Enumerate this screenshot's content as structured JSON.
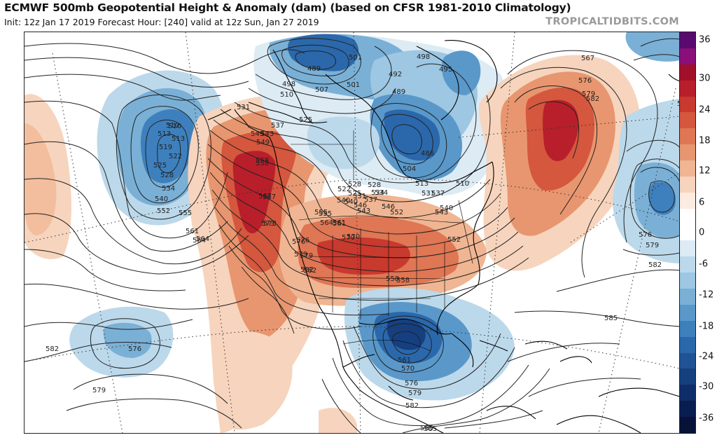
{
  "header": {
    "title": "ECMWF 500mb Geopotential Height & Anomaly (dam) (based on CFSR 1981-2010 Climatology)",
    "subtitle": "Init: 12z Jan 17 2019   Forecast Hour: [240]   valid at 12z Sun, Jan 27 2019",
    "brand": "TROPICALTIDBITS.COM"
  },
  "colorbar": {
    "ticks": [
      "36",
      "30",
      "24",
      "18",
      "12",
      "6",
      "0",
      "-6",
      "-12",
      "-18",
      "-24",
      "-30",
      "-36"
    ],
    "colors": [
      "#5a0a6e",
      "#8a0f78",
      "#a0102a",
      "#b81f2a",
      "#c8392e",
      "#d4573e",
      "#df7654",
      "#e8966f",
      "#f0b592",
      "#f7d4bd",
      "#fcebe0",
      "#ffffff",
      "#ffffff",
      "#dcebf4",
      "#bcd9eb",
      "#9dc7e2",
      "#7ab0d6",
      "#5a98ca",
      "#3e80bd",
      "#2b68ab",
      "#1f5396",
      "#163f80",
      "#0f2d68",
      "#0a1d50",
      "#061238"
    ]
  },
  "contour_labels": [
    {
      "text": "489"
    },
    {
      "text": "498"
    },
    {
      "text": "501"
    },
    {
      "text": "495"
    },
    {
      "text": "498"
    },
    {
      "text": "510"
    },
    {
      "text": "507"
    },
    {
      "text": "501"
    },
    {
      "text": "492"
    },
    {
      "text": "489"
    },
    {
      "text": "486"
    },
    {
      "text": "504"
    },
    {
      "text": "510"
    },
    {
      "text": "513"
    },
    {
      "text": "522"
    },
    {
      "text": "525"
    },
    {
      "text": "528"
    },
    {
      "text": "531"
    },
    {
      "text": "534"
    },
    {
      "text": "537"
    },
    {
      "text": "540"
    },
    {
      "text": "543"
    },
    {
      "text": "546"
    },
    {
      "text": "549"
    },
    {
      "text": "552"
    },
    {
      "text": "555"
    },
    {
      "text": "558"
    },
    {
      "text": "561"
    },
    {
      "text": "564"
    },
    {
      "text": "567"
    },
    {
      "text": "570"
    },
    {
      "text": "573"
    },
    {
      "text": "576"
    },
    {
      "text": "579"
    },
    {
      "text": "582"
    },
    {
      "text": "585"
    },
    {
      "text": "519"
    },
    {
      "text": "525"
    },
    {
      "text": "510"
    },
    {
      "text": "513"
    },
    {
      "text": "528"
    },
    {
      "text": "534"
    },
    {
      "text": "540"
    },
    {
      "text": "552"
    },
    {
      "text": "555"
    },
    {
      "text": "561"
    },
    {
      "text": "564"
    },
    {
      "text": "531"
    },
    {
      "text": "543"
    },
    {
      "text": "537"
    },
    {
      "text": "525"
    },
    {
      "text": "549"
    },
    {
      "text": "558"
    },
    {
      "text": "567"
    },
    {
      "text": "573"
    },
    {
      "text": "576"
    },
    {
      "text": "579"
    },
    {
      "text": "582"
    },
    {
      "text": "555"
    },
    {
      "text": "564"
    },
    {
      "text": "561"
    },
    {
      "text": "570"
    },
    {
      "text": "540"
    },
    {
      "text": "546"
    },
    {
      "text": "534"
    },
    {
      "text": "528"
    },
    {
      "text": "531"
    },
    {
      "text": "537"
    },
    {
      "text": "543"
    },
    {
      "text": "540"
    },
    {
      "text": "552"
    },
    {
      "text": "558"
    },
    {
      "text": "558"
    },
    {
      "text": "561"
    },
    {
      "text": "570"
    },
    {
      "text": "576"
    },
    {
      "text": "579"
    },
    {
      "text": "582"
    },
    {
      "text": "585"
    },
    {
      "text": "567"
    },
    {
      "text": "576"
    },
    {
      "text": "579"
    },
    {
      "text": "582"
    },
    {
      "text": "573"
    },
    {
      "text": "576"
    },
    {
      "text": "579"
    },
    {
      "text": "582"
    },
    {
      "text": "585"
    },
    {
      "text": "582"
    },
    {
      "text": "576"
    },
    {
      "text": "579"
    },
    {
      "text": "513"
    },
    {
      "text": "522"
    },
    {
      "text": "510"
    }
  ]
}
